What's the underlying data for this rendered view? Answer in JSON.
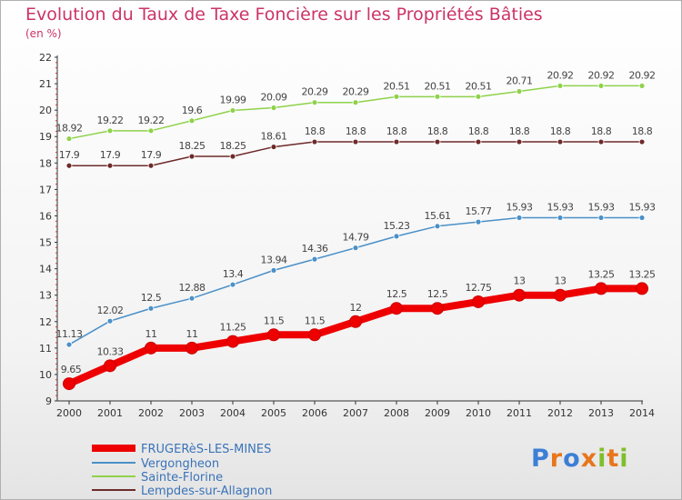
{
  "title": "Evolution du Taux de Taxe Foncière sur les Propriétés Bâties",
  "subtitle": "(en %)",
  "logo": {
    "letters": [
      "P",
      "r",
      "o",
      "x",
      "i",
      "t",
      "i"
    ],
    "colors": [
      "#3c7fd6",
      "#e8761c",
      "#3c7fd6",
      "#e8761c",
      "#7fbf2a",
      "#e8761c",
      "#7fbf2a"
    ]
  },
  "chart_data": {
    "type": "line",
    "x": [
      "2000",
      "2001",
      "2002",
      "2003",
      "2004",
      "2005",
      "2006",
      "2007",
      "2008",
      "2009",
      "2010",
      "2011",
      "2012",
      "2013",
      "2014"
    ],
    "ylim": [
      9,
      22
    ],
    "yticks": [
      "9",
      "10",
      "11",
      "12",
      "13",
      "14",
      "15",
      "16",
      "17",
      "18",
      "19",
      "20",
      "21",
      "22"
    ],
    "grid": false,
    "legend": "bottom-left",
    "series": [
      {
        "name": "FRUGERèS-LES-MINES",
        "color": "#ee0000",
        "values": [
          9.65,
          10.33,
          11,
          11,
          11.25,
          11.5,
          11.5,
          12,
          12.5,
          12.5,
          12.75,
          13,
          13,
          13.25,
          13.25
        ],
        "labels": [
          "9.65",
          "10.33",
          "11",
          "11",
          "11.25",
          "11.5",
          "11.5",
          "12",
          "12.5",
          "12.5",
          "12.75",
          "13",
          "13",
          "13.25",
          "13.25"
        ]
      },
      {
        "name": "Vergongheon",
        "color": "#4a90c8",
        "values": [
          11.13,
          12.02,
          12.5,
          12.88,
          13.4,
          13.94,
          14.36,
          14.79,
          15.23,
          15.61,
          15.77,
          15.93,
          15.93,
          15.93,
          15.93
        ],
        "labels": [
          "11.13",
          "12.02",
          "12.5",
          "12.88",
          "13.4",
          "13.94",
          "14.36",
          "14.79",
          "15.23",
          "15.61",
          "15.77",
          "15.93",
          "15.93",
          "15.93",
          "15.93"
        ]
      },
      {
        "name": "Sainte-Florine",
        "color": "#8fd24a",
        "values": [
          18.92,
          19.22,
          19.22,
          19.6,
          19.99,
          20.09,
          20.29,
          20.29,
          20.51,
          20.51,
          20.51,
          20.71,
          20.92,
          20.92,
          20.92
        ],
        "labels": [
          "18.92",
          "19.22",
          "19.22",
          "19.6",
          "19.99",
          "20.09",
          "20.29",
          "20.29",
          "20.51",
          "20.51",
          "20.51",
          "20.71",
          "20.92",
          "20.92",
          "20.92"
        ]
      },
      {
        "name": "Lempdes-sur-Allagnon",
        "color": "#6e2a2a",
        "values": [
          17.9,
          17.9,
          17.9,
          18.25,
          18.25,
          18.61,
          18.8,
          18.8,
          18.8,
          18.8,
          18.8,
          18.8,
          18.8,
          18.8,
          18.8
        ],
        "labels": [
          "17.9",
          "17.9",
          "17.9",
          "18.25",
          "18.25",
          "18.61",
          "18.8",
          "18.8",
          "18.8",
          "18.8",
          "18.8",
          "18.8",
          "18.8",
          "18.8",
          "18.8"
        ]
      }
    ]
  }
}
